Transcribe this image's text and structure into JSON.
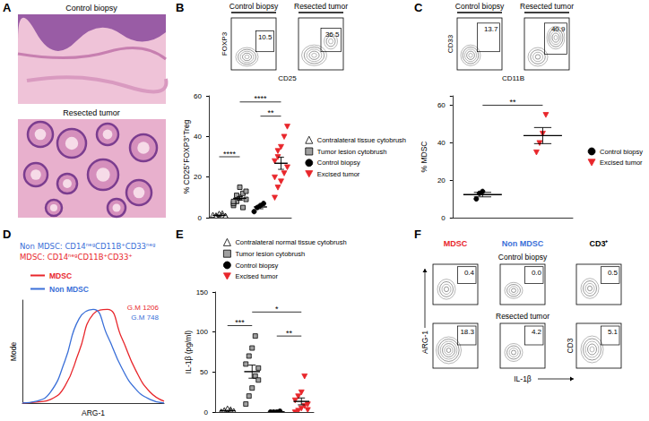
{
  "panels": {
    "A": {
      "label": "A",
      "images": [
        "Control biopsy",
        "Resected tumor"
      ]
    },
    "B": {
      "label": "B",
      "flow": {
        "columns": [
          "Control biopsy",
          "Resected tumor"
        ],
        "gates": [
          10.5,
          36.5
        ],
        "y_label": "FOXP3",
        "x_label": "CD25"
      }
    },
    "C": {
      "label": "C",
      "flow": {
        "columns": [
          "Control biopsy",
          "Resected tumor"
        ],
        "gates": [
          13.7,
          40.9
        ],
        "y_label": "CD33",
        "x_label": "CD11B"
      }
    },
    "D": {
      "label": "D",
      "definitions": [
        {
          "text": "Non MDSC: CD14ⁿᵉᵍCD11B⁺CD33ⁿᵉᵍ",
          "color": "#3a6fd8"
        },
        {
          "text": "MDSC: CD14ⁿᵉᵍCD11B⁺CD33⁺",
          "color": "#e8262b"
        }
      ]
    },
    "E": {
      "label": "E"
    },
    "F": {
      "label": "F",
      "columns": [
        {
          "title": "MDSC",
          "color": "#e8262b"
        },
        {
          "title": "Non MDSC",
          "color": "#3a6fd8"
        },
        {
          "title": "CD3⁺",
          "color": "#000000"
        }
      ],
      "rows": [
        {
          "title": "Control biopsy",
          "gates": [
            0.4,
            {
              "value": 0,
              "label": "0.0"
            },
            0.5
          ]
        },
        {
          "title": "Resected tumor",
          "gates": [
            18.3,
            4.2,
            5.1
          ]
        }
      ],
      "y_label": "ARG-1",
      "y_label_alt": "CD3",
      "x_label": "IL-1β"
    }
  },
  "chart_data": [
    {
      "type": "scatter",
      "y_label": "% CD25⁺FOXP3⁺Treg",
      "ylim": [
        0,
        60
      ],
      "yticks": [
        0,
        20,
        40,
        60
      ],
      "grid": false,
      "tick_labels": "y",
      "legend": "right",
      "series": [
        {
          "name": "Contralateral tissue cytobrush",
          "color": "#000000",
          "marker": "open-triangle",
          "values": [
            0.5,
            1.0,
            1.5,
            2.0,
            0.8,
            1.2,
            0.3,
            1.8,
            1.0,
            0.6
          ],
          "mean": 1.1,
          "sem": 0.2
        },
        {
          "name": "Tumor lesion cytobrush",
          "color": "#a0a0a0",
          "marker": "square",
          "values": [
            6,
            8,
            10,
            12,
            9,
            7,
            11,
            15,
            5,
            13,
            8
          ],
          "mean": 9.5,
          "sem": 0.9
        },
        {
          "name": "Control biopsy",
          "color": "#000000",
          "marker": "circle",
          "values": [
            3,
            5,
            6,
            7
          ],
          "mean": 5.3,
          "sem": 0.9
        },
        {
          "name": "Excised tumor",
          "color": "#e8262b",
          "marker": "triangle-down",
          "values": [
            10,
            15,
            18,
            22,
            25,
            28,
            30,
            35,
            40,
            45,
            20,
            33
          ],
          "mean": 26.8,
          "sem": 3.0
        }
      ],
      "annotations": [
        {
          "from": 0,
          "to": 1,
          "y": 30,
          "label": "****"
        },
        {
          "from": 2,
          "to": 3,
          "y": 50,
          "label": "**"
        },
        {
          "from": 1,
          "to": 3,
          "y": 57,
          "label": "****"
        }
      ]
    },
    {
      "type": "scatter",
      "y_label": "% MDSC",
      "ylim": [
        0,
        65
      ],
      "yticks": [
        0,
        20,
        40,
        60
      ],
      "grid": false,
      "tick_labels": "y",
      "legend": "right",
      "series": [
        {
          "name": "Control biopsy",
          "color": "#000000",
          "marker": "circle",
          "values": [
            10,
            13,
            14
          ],
          "mean": 12.3,
          "sem": 1.2
        },
        {
          "name": "Excised tumor",
          "color": "#e8262b",
          "marker": "triangle-down",
          "values": [
            35,
            40,
            45,
            55
          ],
          "mean": 43.8,
          "sem": 4.3
        }
      ],
      "annotations": [
        {
          "from": 0,
          "to": 1,
          "y": 60,
          "label": "**"
        }
      ]
    },
    {
      "type": "line",
      "x_label": "ARG-1",
      "y_label": "Mode",
      "xlim": [
        0,
        100
      ],
      "ylim": [
        0,
        110
      ],
      "grid": false,
      "tick_labels": false,
      "legend": "top",
      "x": [
        0,
        10,
        20,
        30,
        40,
        50,
        60,
        70,
        80,
        90,
        100
      ],
      "series": [
        {
          "name": "MDSC",
          "color": "#e8262b",
          "values": [
            0,
            1,
            4,
            18,
            55,
            95,
            100,
            70,
            35,
            12,
            2
          ],
          "annotation": "G.M 1206"
        },
        {
          "name": "Non MDSC",
          "color": "#3a6fd8",
          "values": [
            0,
            2,
            12,
            45,
            90,
            100,
            72,
            38,
            15,
            4,
            0
          ],
          "annotation": "G.M 748"
        }
      ]
    },
    {
      "type": "scatter",
      "y_label": "IL-1β (pg/ml)",
      "ylim": [
        0,
        150
      ],
      "yticks": [
        0,
        50,
        100,
        150
      ],
      "grid": false,
      "tick_labels": "y",
      "legend": "top",
      "series": [
        {
          "name": "Contralateral normal tissue cytobrush",
          "color": "#000000",
          "marker": "open-triangle",
          "values": [
            0,
            1,
            2,
            3,
            1,
            0,
            2,
            4,
            1
          ],
          "mean": 1.6,
          "sem": 0.5
        },
        {
          "name": "Tumor lesion cytobrush",
          "color": "#a0a0a0",
          "marker": "square",
          "values": [
            10,
            20,
            30,
            45,
            55,
            60,
            70,
            80,
            95,
            40
          ],
          "mean": 50.5,
          "sem": 8.2
        },
        {
          "name": "Control biopsy",
          "color": "#000000",
          "marker": "circle",
          "values": [
            0,
            0,
            0,
            1
          ],
          "mean": 0.3,
          "sem": 0.3
        },
        {
          "name": "Excised tumor",
          "color": "#e8262b",
          "marker": "triangle-down",
          "values": [
            0,
            2,
            5,
            8,
            10,
            15,
            20,
            25,
            45,
            3
          ],
          "mean": 13.3,
          "sem": 4.3
        }
      ],
      "annotations": [
        {
          "from": 0,
          "to": 1,
          "y": 108,
          "label": "***"
        },
        {
          "from": 2,
          "to": 3,
          "y": 95,
          "label": "**"
        },
        {
          "from": 1,
          "to": 3,
          "y": 125,
          "label": "*"
        }
      ]
    }
  ]
}
